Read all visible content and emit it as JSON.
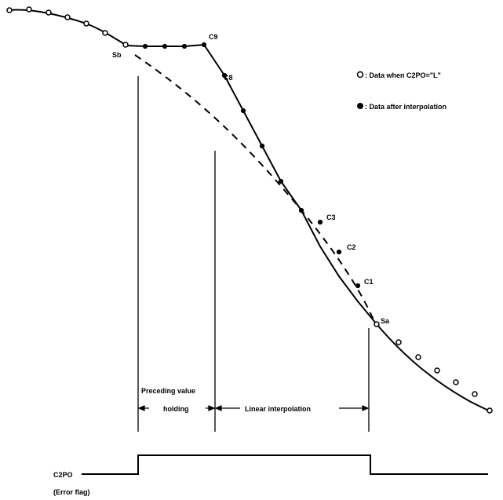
{
  "legend": {
    "open_marker_text": ": Data when C2PO=\"L\"",
    "filled_marker_text": ": Data after interpolation"
  },
  "point_labels": {
    "sb": "Sb",
    "sa": "Sa",
    "c9": "C9",
    "c8": "C8",
    "c3": "C3",
    "c2": "C2",
    "c1": "C1"
  },
  "regions": {
    "preceding_line1": "Preceding value",
    "preceding_line2": "holding",
    "linear": "Linear interpolation"
  },
  "signal": {
    "name": "C2PO",
    "note": "(Error flag)"
  }
}
